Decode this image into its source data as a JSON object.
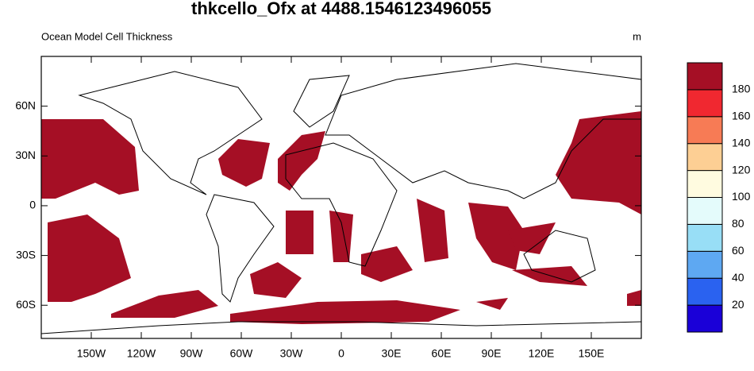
{
  "chart_data": {
    "type": "map",
    "title": "thkcello_Ofx at 4488.1546123496055",
    "subtitle": "Ocean Model Cell Thickness",
    "units": "m",
    "xlim": [
      -180,
      180
    ],
    "ylim": [
      -80,
      90
    ],
    "xticks": [
      {
        "value": -150,
        "label": "150W"
      },
      {
        "value": -120,
        "label": "120W"
      },
      {
        "value": -90,
        "label": "90W"
      },
      {
        "value": -60,
        "label": "60W"
      },
      {
        "value": -30,
        "label": "30W"
      },
      0,
      {
        "value": 30,
        "label": "30E"
      },
      {
        "value": 60,
        "label": "60E"
      },
      {
        "value": 90,
        "label": "90E"
      },
      {
        "value": 120,
        "label": "120E"
      },
      {
        "value": 150,
        "label": "150E"
      }
    ],
    "yticks": [
      {
        "value": -60,
        "label": "60S"
      },
      {
        "value": -30,
        "label": "30S"
      },
      0,
      {
        "value": 30,
        "label": "30N"
      },
      {
        "value": 60,
        "label": "60N"
      }
    ],
    "colorbar": {
      "levels": [
        20,
        40,
        60,
        80,
        100,
        120,
        140,
        160,
        180
      ],
      "colors": [
        "#1a00d8",
        "#2a62f0",
        "#5ea8f2",
        "#98def6",
        "#e4fbfb",
        "#fffbe0",
        "#fdcf94",
        "#f77b55",
        "#f02830",
        "#a50f25"
      ]
    }
  }
}
